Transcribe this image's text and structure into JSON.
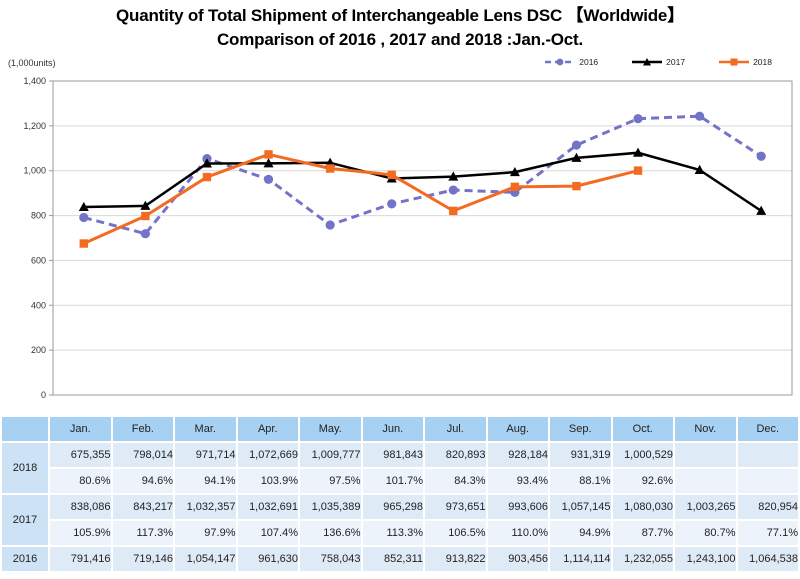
{
  "title": {
    "line1": "Quantity of Total Shipment of Interchangeable Lens DSC 【Worldwide】",
    "line2": "Comparison of 2016 , 2017 and 2018 :Jan.-Oct."
  },
  "chart": {
    "unit_label": "(1,000units)",
    "ytick_labels": [
      "0",
      "200",
      "400",
      "600",
      "800",
      "1,000",
      "1,200",
      "1,400"
    ],
    "ytick_step": 200,
    "grid_color": "#d9d9d9",
    "frame_color": "#9a9a9a",
    "axis_text_color": "#333333"
  },
  "chart_data": {
    "type": "line",
    "title": "Quantity of Total Shipment of Interchangeable Lens DSC 【Worldwide】 Comparison of 2016 , 2017 and 2018 :Jan.-Oct.",
    "unit": "1,000units",
    "categories": [
      "Jan.",
      "Feb.",
      "Mar.",
      "Apr.",
      "May.",
      "Jun.",
      "Jul.",
      "Aug.",
      "Sep.",
      "Oct.",
      "Nov.",
      "Dec."
    ],
    "ylim": [
      0,
      1400
    ],
    "value_divisor": 1000,
    "grid": true,
    "legend_position": "top-right",
    "series": [
      {
        "name": "2016",
        "color": "#7273c9",
        "line_style": "dashed",
        "marker": "circle",
        "values": [
          791416,
          719146,
          1054147,
          961630,
          758043,
          852311,
          913822,
          903456,
          1114114,
          1232055,
          1243100,
          1064538
        ]
      },
      {
        "name": "2017",
        "color": "#000000",
        "line_style": "solid",
        "marker": "triangle",
        "values": [
          838086,
          843217,
          1032357,
          1032691,
          1035389,
          965298,
          973651,
          993606,
          1057145,
          1080030,
          1003265,
          820954
        ]
      },
      {
        "name": "2018",
        "color": "#f26b21",
        "line_style": "solid",
        "marker": "square",
        "values": [
          675355,
          798014,
          971714,
          1072669,
          1009777,
          981843,
          820893,
          928184,
          931319,
          1000529,
          null,
          null
        ]
      }
    ]
  },
  "table": {
    "month_headers": [
      "Jan.",
      "Feb.",
      "Mar.",
      "Apr.",
      "May.",
      "Jun.",
      "Jul.",
      "Aug.",
      "Sep.",
      "Oct.",
      "Nov.",
      "Dec."
    ],
    "row_groups": [
      {
        "year": "2018",
        "values": [
          "675,355",
          "798,014",
          "971,714",
          "1,072,669",
          "1,009,777",
          "981,843",
          "820,893",
          "928,184",
          "931,319",
          "1,000,529",
          "",
          ""
        ],
        "percents": [
          "80.6%",
          "94.6%",
          "94.1%",
          "103.9%",
          "97.5%",
          "101.7%",
          "84.3%",
          "93.4%",
          "88.1%",
          "92.6%",
          "",
          ""
        ]
      },
      {
        "year": "2017",
        "values": [
          "838,086",
          "843,217",
          "1,032,357",
          "1,032,691",
          "1,035,389",
          "965,298",
          "973,651",
          "993,606",
          "1,057,145",
          "1,080,030",
          "1,003,265",
          "820,954"
        ],
        "percents": [
          "105.9%",
          "117.3%",
          "97.9%",
          "107.4%",
          "136.6%",
          "113.3%",
          "106.5%",
          "110.0%",
          "94.9%",
          "87.7%",
          "80.7%",
          "77.1%"
        ]
      },
      {
        "year": "2016",
        "values": [
          "791,416",
          "719,146",
          "1,054,147",
          "961,630",
          "758,043",
          "852,311",
          "913,822",
          "903,456",
          "1,114,114",
          "1,232,055",
          "1,243,100",
          "1,064,538"
        ],
        "percents": null
      }
    ],
    "colors": {
      "header_bg": "#a6d1f2",
      "year_bg": "#cde2f5",
      "value_row_bg": "#dfeaf7",
      "percent_row_bg": "#edf3fb"
    }
  }
}
